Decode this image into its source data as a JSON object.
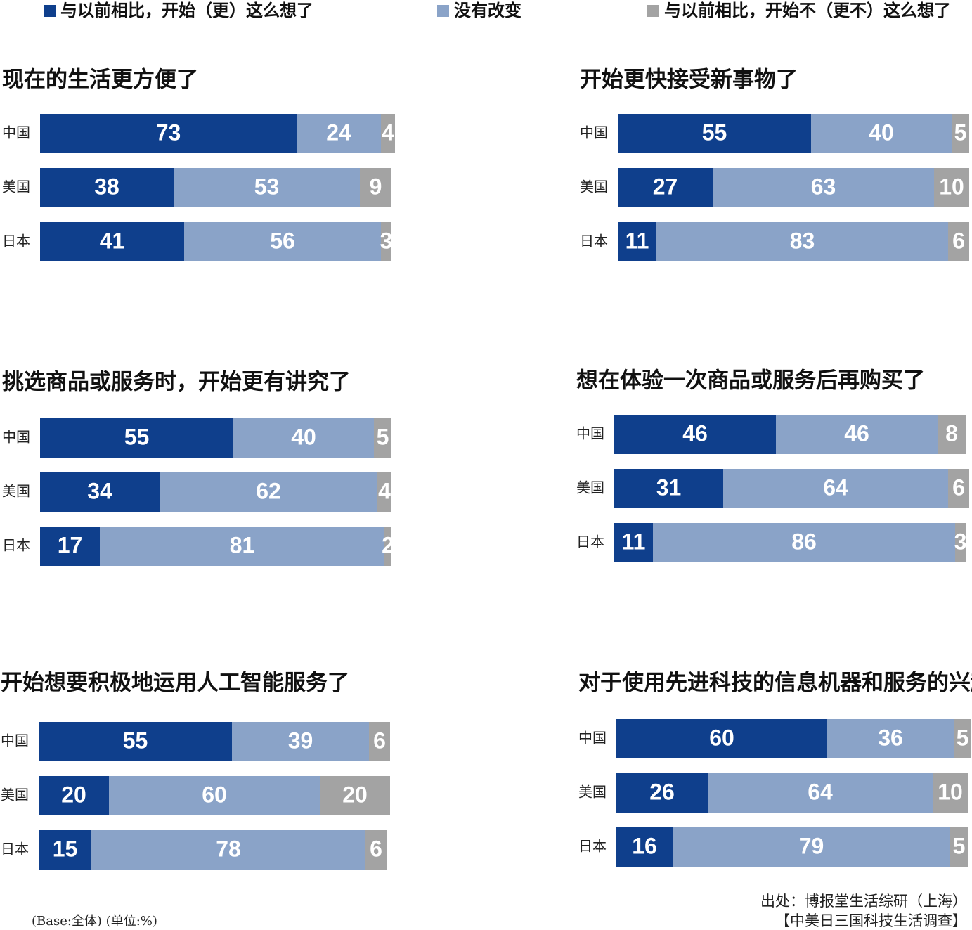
{
  "legend": {
    "items": [
      {
        "name": "与以前相比，开始（更）这么想了",
        "color": "#0f3f8c"
      },
      {
        "name": "没有改变",
        "color": "#8aa3c8"
      },
      {
        "name": "与以前相比，开始不（更不）这么想了",
        "color": "#a3a3a3"
      }
    ]
  },
  "chart_data": [
    {
      "type": "stacked-bar",
      "title": "现在的生活更方便了",
      "categories": [
        "中国",
        "美国",
        "日本"
      ],
      "series": [
        {
          "values": [
            73,
            38,
            41
          ]
        },
        {
          "values": [
            24,
            53,
            56
          ]
        },
        {
          "values": [
            4,
            9,
            3
          ]
        }
      ]
    },
    {
      "type": "stacked-bar",
      "title": "开始更快接受新事物了",
      "categories": [
        "中国",
        "美国",
        "日本"
      ],
      "series": [
        {
          "values": [
            55,
            27,
            11
          ]
        },
        {
          "values": [
            40,
            63,
            83
          ]
        },
        {
          "values": [
            5,
            10,
            6
          ]
        }
      ]
    },
    {
      "type": "stacked-bar",
      "title": "挑选商品或服务时，开始更有讲究了",
      "categories": [
        "中国",
        "美国",
        "日本"
      ],
      "series": [
        {
          "values": [
            55,
            34,
            17
          ]
        },
        {
          "values": [
            40,
            62,
            81
          ]
        },
        {
          "values": [
            5,
            4,
            2
          ]
        }
      ]
    },
    {
      "type": "stacked-bar",
      "title": "想在体验一次商品或服务后再购买了",
      "categories": [
        "中国",
        "美国",
        "日本"
      ],
      "series": [
        {
          "values": [
            46,
            31,
            11
          ]
        },
        {
          "values": [
            46,
            64,
            86
          ]
        },
        {
          "values": [
            8,
            6,
            3
          ]
        }
      ]
    },
    {
      "type": "stacked-bar",
      "title": "开始想要积极地运用人工智能服务了",
      "categories": [
        "中国",
        "美国",
        "日本"
      ],
      "series": [
        {
          "values": [
            55,
            20,
            15
          ]
        },
        {
          "values": [
            39,
            60,
            78
          ]
        },
        {
          "values": [
            6,
            20,
            6
          ]
        }
      ]
    },
    {
      "type": "stacked-bar",
      "title": "对于使用先进科技的信息机器和服务的兴趣增强了",
      "categories": [
        "中国",
        "美国",
        "日本"
      ],
      "series": [
        {
          "values": [
            60,
            26,
            16
          ]
        },
        {
          "values": [
            36,
            64,
            79
          ]
        },
        {
          "values": [
            5,
            10,
            5
          ]
        }
      ]
    }
  ],
  "note": "(Base:全体) (单位:%)",
  "source": [
    "出处：博报堂生活综研（上海）",
    "【中美日三国科技生活调查】"
  ]
}
